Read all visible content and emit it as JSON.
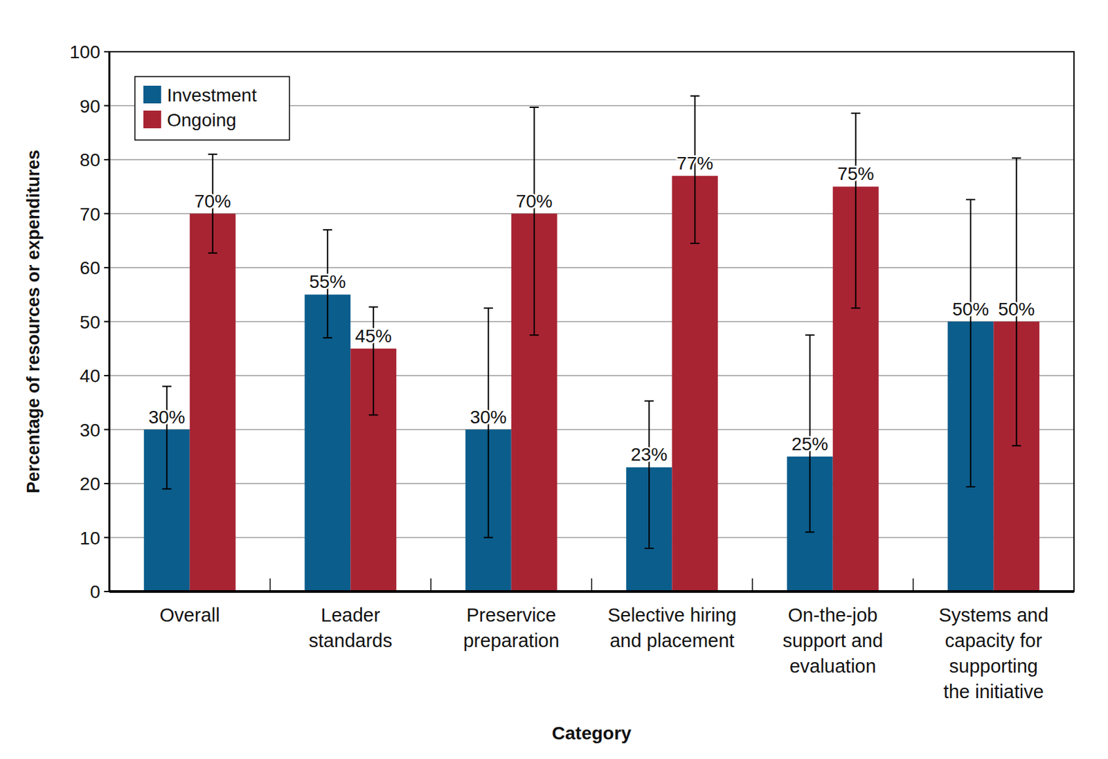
{
  "chart_data": {
    "type": "bar",
    "x_label": "Category",
    "y_label": "Percentage of resources or expenditures",
    "categories": [
      "Overall",
      "Leader\nstandards",
      "Preservice\npreparation",
      "Selective hiring\nand placement",
      "On-the-job\nsupport and\nevaluation",
      "Systems and\ncapacity for\nsupporting\nthe initiative"
    ],
    "series": [
      {
        "name": "Investment",
        "color": "#0b5d8c",
        "values": [
          30,
          55,
          30,
          23,
          25,
          50
        ],
        "value_labels": [
          "30%",
          "55%",
          "30%",
          "23%",
          "25%",
          "50%"
        ],
        "error_low": [
          19,
          47,
          10,
          8,
          11,
          19.4
        ],
        "error_high": [
          38,
          67,
          52.5,
          35.3,
          47.5,
          72.6
        ]
      },
      {
        "name": "Ongoing",
        "color": "#a82433",
        "values": [
          70,
          45,
          70,
          77,
          75,
          50
        ],
        "value_labels": [
          "70%",
          "45%",
          "70%",
          "77%",
          "75%",
          "50%"
        ],
        "error_low": [
          62.7,
          32.7,
          47.5,
          64.5,
          52.5,
          27
        ],
        "error_high": [
          81,
          52.7,
          89.7,
          91.8,
          88.6,
          80.3
        ]
      }
    ],
    "ylim": [
      0,
      100
    ],
    "yticks": [
      0,
      10,
      20,
      30,
      40,
      50,
      60,
      70,
      80,
      90,
      100
    ],
    "grid": true,
    "legend": "upper left",
    "data_labels": true
  }
}
